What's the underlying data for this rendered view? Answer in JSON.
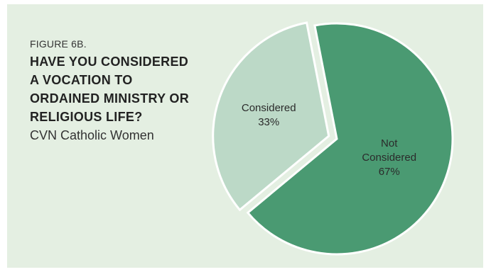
{
  "figure": {
    "label": "FIGURE 6B.",
    "title": "HAVE YOU CONSIDERED A VOCATION TO ORDAINED MINISTRY OR RELIGIOUS LIFE?",
    "subtitle": "CVN Catholic Women"
  },
  "colors": {
    "background": "#e4efe2",
    "considered": "#bcd9c7",
    "not_considered": "#4a9a72",
    "slice_edge": "#ffffff"
  },
  "chart_data": {
    "type": "pie",
    "title": "HAVE YOU CONSIDERED A VOCATION TO ORDAINED MINISTRY OR RELIGIOUS LIFE?",
    "subtitle": "CVN Catholic Women",
    "slices": [
      {
        "label": "Not Considered",
        "value": 67,
        "value_label": "67%"
      },
      {
        "label": "Considered",
        "value": 33,
        "value_label": "33%"
      }
    ],
    "exploded": "Considered",
    "legend": "none"
  }
}
